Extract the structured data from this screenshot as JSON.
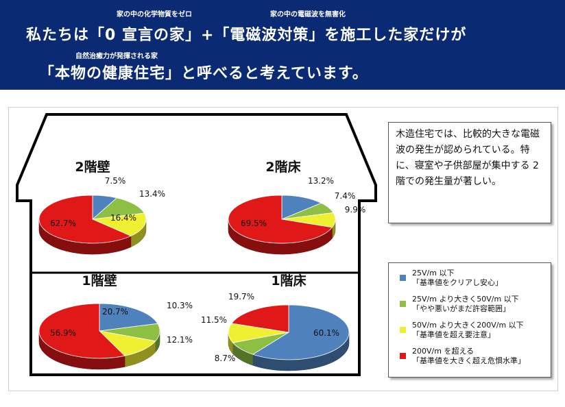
{
  "header": {
    "line1_part1": "私たちは「0 宣言の家」+「電磁波対策」を施工した家だけが",
    "line2": "「本物の健康住宅」と呼べると考えています。",
    "ruby_zero": "家の中の化学物質をゼロ",
    "ruby_em": "家の中の電磁波を無害化",
    "ruby_health": "自然治癒力が発揮される家"
  },
  "note": "木造住宅では、比較的大きな電磁波の発生が認められている。特に、寝室や子供部屋が集中する 2 階での発生量が著しい。",
  "colors": {
    "blue": "#4f81bd",
    "green": "#8cbf44",
    "yellow": "#f0f032",
    "red": "#e01818",
    "banner": "#0b2a74"
  },
  "legend": [
    {
      "line1": "25V/m 以下",
      "line2": "「基準値をクリアし安心」",
      "color": "#4f81bd"
    },
    {
      "line1": "25V/m より大きく50V/m 以下",
      "line2": "「やや悪いがまだ許容範囲」",
      "color": "#8cbf44"
    },
    {
      "line1": "50V/m より大きく200V/m 以下",
      "line2": "「基準値を超え要注意」",
      "color": "#f0f032"
    },
    {
      "line1": "200V/m を超える",
      "line2": "「基準値を大きく超え危惧水準」",
      "color": "#e01818"
    }
  ],
  "chart_data": [
    {
      "type": "pie",
      "title": "2階壁",
      "categories": [
        "25V/m 以下",
        "25V/m より大きく50V/m 以下",
        "50V/m より大きく200V/m 以下",
        "200V/m を超える"
      ],
      "values": [
        7.5,
        13.4,
        16.4,
        62.7
      ],
      "labels": [
        "7.5%",
        "13.4%",
        "16.4%",
        "62.7%"
      ]
    },
    {
      "type": "pie",
      "title": "2階床",
      "categories": [
        "25V/m 以下",
        "25V/m より大きく50V/m 以下",
        "50V/m より大きく200V/m 以下",
        "200V/m を超える"
      ],
      "values": [
        13.2,
        7.4,
        9.9,
        69.5
      ],
      "labels": [
        "13.2%",
        "7.4%",
        "9.9%",
        "69.5%"
      ]
    },
    {
      "type": "pie",
      "title": "1階壁",
      "categories": [
        "25V/m 以下",
        "25V/m より大きく50V/m 以下",
        "50V/m より大きく200V/m 以下",
        "200V/m を超える"
      ],
      "values": [
        20.7,
        10.3,
        12.1,
        56.9
      ],
      "labels": [
        "20.7%",
        "10.3%",
        "12.1%",
        "56.9%"
      ]
    },
    {
      "type": "pie",
      "title": "1階床",
      "categories": [
        "25V/m 以下",
        "25V/m より大きく50V/m 以下",
        "50V/m より大きく200V/m 以下",
        "200V/m を超える"
      ],
      "values": [
        60.1,
        8.7,
        11.5,
        19.7
      ],
      "labels": [
        "60.1%",
        "8.7%",
        "11.5%",
        "19.7%"
      ]
    }
  ]
}
